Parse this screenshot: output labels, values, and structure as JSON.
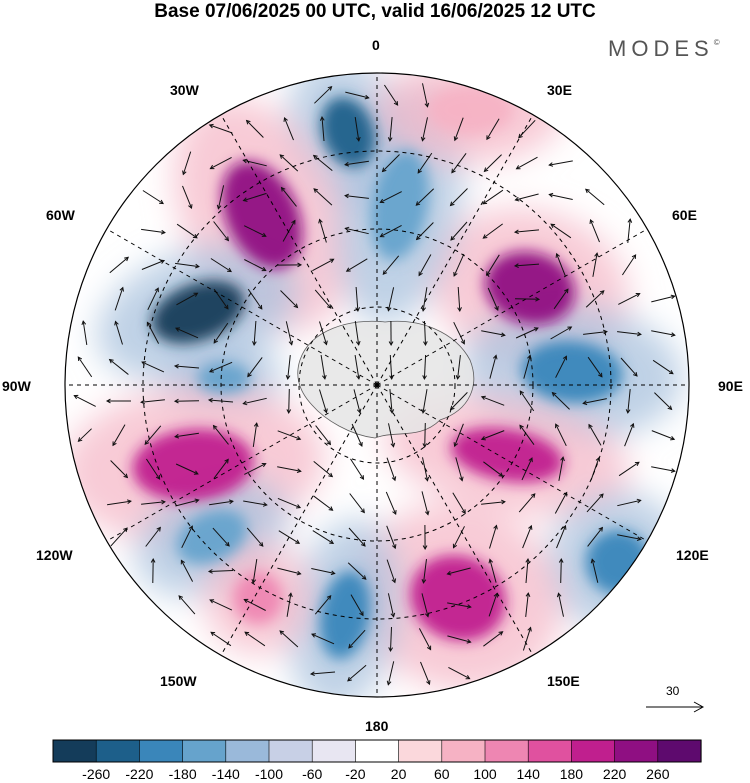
{
  "title": "Base 07/06/2025 00 UTC, valid 16/06/2025 12 UTC",
  "brand": "MODES",
  "brand_mark": "©",
  "longitude_labels": [
    "0",
    "30E",
    "60E",
    "90E",
    "120E",
    "150E",
    "180",
    "150W",
    "120W",
    "90W",
    "60W",
    "30W"
  ],
  "reference_vector": {
    "label": "30",
    "icon": "arrow-right-icon"
  },
  "colorbar": {
    "colors": [
      "#143c5a",
      "#1d5f8a",
      "#3a86ba",
      "#66a3cc",
      "#9ab9da",
      "#c8d0e6",
      "#e8e6f2",
      "#ffffff",
      "#fbd8dc",
      "#f6b2c4",
      "#ee86b2",
      "#e0519f",
      "#c01f8e",
      "#8f0f82",
      "#5e0a6e"
    ],
    "ticks": [
      "-260",
      "-220",
      "-180",
      "-140",
      "-100",
      "-60",
      "-20",
      "20",
      "60",
      "100",
      "140",
      "180",
      "220",
      "260"
    ]
  },
  "anomaly_centers": [
    {
      "sign": "negative",
      "level": -220,
      "color": "#1d5f8a"
    },
    {
      "sign": "positive",
      "level": 220,
      "color": "#8f0f82"
    },
    {
      "sign": "negative",
      "level": -260,
      "color": "#143c5a"
    },
    {
      "sign": "positive",
      "level": 220,
      "color": "#8f0f82"
    },
    {
      "sign": "negative",
      "level": -140,
      "color": "#66a3cc"
    },
    {
      "sign": "positive",
      "level": 180,
      "color": "#c01f8e"
    },
    {
      "sign": "negative",
      "level": -180,
      "color": "#3a86ba"
    },
    {
      "sign": "positive",
      "level": 180,
      "color": "#c01f8e"
    },
    {
      "sign": "negative",
      "level": -180,
      "color": "#3a86ba"
    },
    {
      "sign": "negative",
      "level": -140,
      "color": "#66a3cc"
    },
    {
      "sign": "positive",
      "level": 180,
      "color": "#c01f8e"
    },
    {
      "sign": "negative",
      "level": -180,
      "color": "#3a86ba"
    },
    {
      "sign": "negative",
      "level": -140,
      "color": "#66a3cc"
    },
    {
      "sign": "positive",
      "level": 100,
      "color": "#f6b2c4"
    },
    {
      "sign": "positive",
      "level": 140,
      "color": "#ee86b2"
    }
  ]
}
